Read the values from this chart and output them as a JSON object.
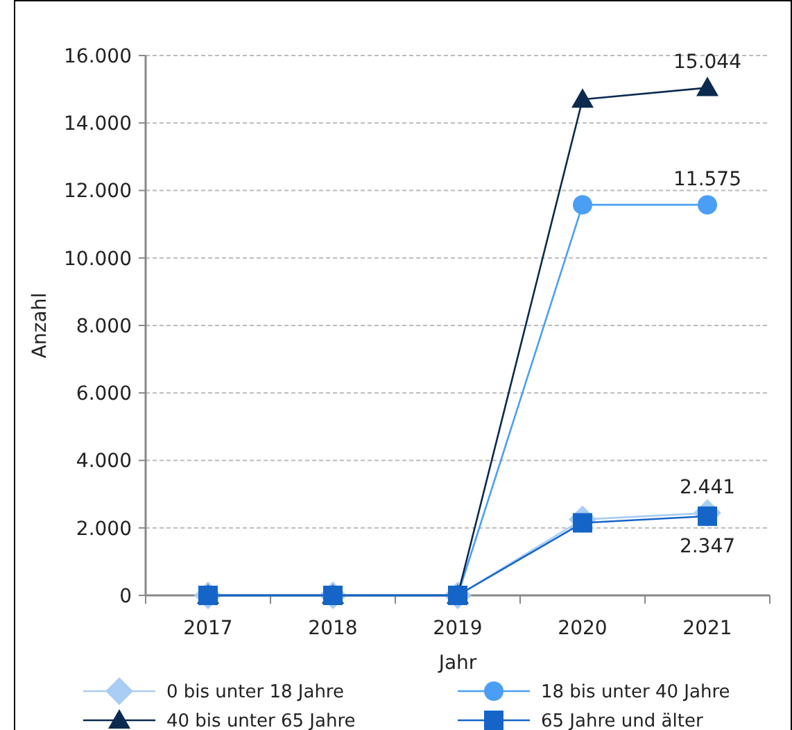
{
  "chart_data": {
    "type": "line",
    "xlabel": "Jahr",
    "ylabel": "Anzahl",
    "categories": [
      "2017",
      "2018",
      "2019",
      "2020",
      "2021"
    ],
    "series": [
      {
        "name": "0 bis unter 18 Jahre",
        "color": "#a9cdf5",
        "marker": "diamond",
        "values": [
          0,
          0,
          0,
          2250,
          2441
        ],
        "value_labels": [
          null,
          null,
          null,
          null,
          "2.441"
        ]
      },
      {
        "name": "18 bis unter 40 Jahre",
        "color": "#4a9ff5",
        "marker": "circle",
        "values": [
          0,
          0,
          0,
          11575,
          11575
        ],
        "value_labels": [
          null,
          null,
          null,
          null,
          "11.575"
        ]
      },
      {
        "name": "40 bis unter 65 Jahre",
        "color": "#0b2a4f",
        "marker": "triangle",
        "values": [
          0,
          0,
          0,
          14700,
          15044
        ],
        "value_labels": [
          null,
          null,
          null,
          null,
          "15.044"
        ]
      },
      {
        "name": "65 Jahre und älter",
        "color": "#1565c8",
        "marker": "square",
        "values": [
          0,
          0,
          0,
          2150,
          2347
        ],
        "value_labels": [
          null,
          null,
          null,
          null,
          "2.347"
        ]
      }
    ],
    "ylim": [
      0,
      16000
    ],
    "yticks": [
      {
        "value": 0,
        "label": "0"
      },
      {
        "value": 2000,
        "label": "2.000"
      },
      {
        "value": 4000,
        "label": "4.000"
      },
      {
        "value": 6000,
        "label": "6.000"
      },
      {
        "value": 8000,
        "label": "8.000"
      },
      {
        "value": 10000,
        "label": "10.000"
      },
      {
        "value": 12000,
        "label": "12.000"
      },
      {
        "value": 14000,
        "label": "14.000"
      },
      {
        "value": 16000,
        "label": "16.000"
      }
    ],
    "grid": "y",
    "legend": "bottom"
  }
}
